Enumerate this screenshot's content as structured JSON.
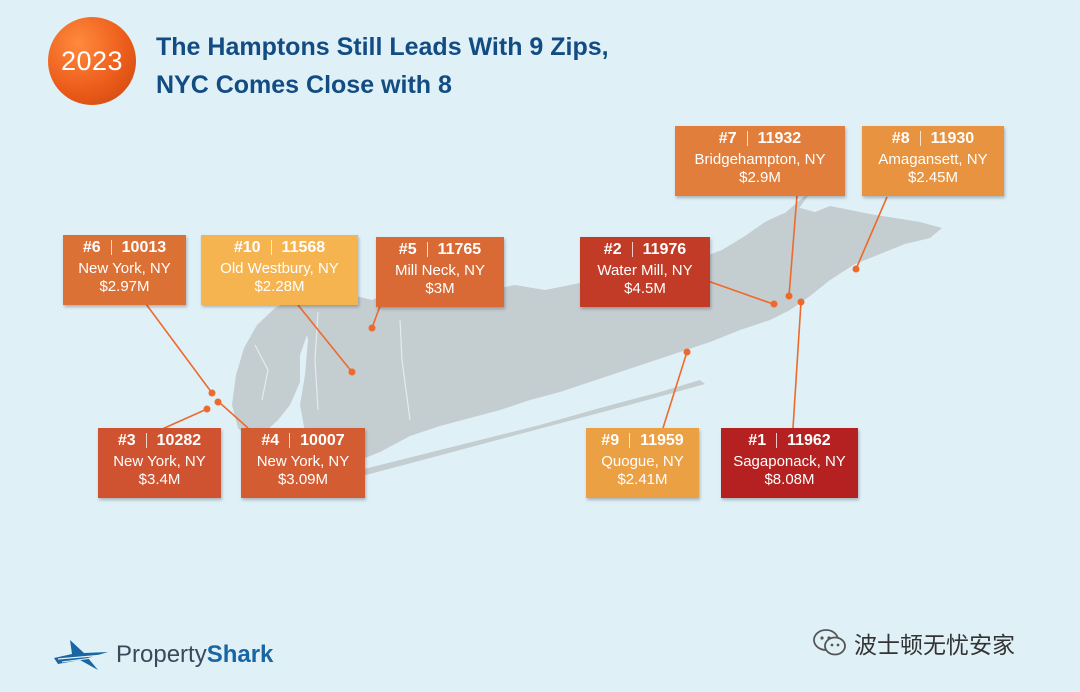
{
  "year_badge": "2023",
  "title_line1": "The Hamptons Still Leads With 9 Zips,",
  "title_line2": "NYC Comes Close with 8",
  "logo": {
    "brand_plain": "Property",
    "brand_bold": "Shark"
  },
  "watermark": "波士顿无忧安家",
  "colors": {
    "background": "#dff0f7",
    "land": "#c4cdd0",
    "pointer": "#ee6a2c",
    "title": "#124c83"
  },
  "listings": [
    {
      "rank": "#1",
      "zip": "11962",
      "city": "Sagaponack, NY",
      "price": "$8.08M",
      "color": "#b42120"
    },
    {
      "rank": "#2",
      "zip": "11976",
      "city": "Water Mill, NY",
      "price": "$4.5M",
      "color": "#c23b26"
    },
    {
      "rank": "#3",
      "zip": "10282",
      "city": "New York, NY",
      "price": "$3.4M",
      "color": "#cf5331"
    },
    {
      "rank": "#4",
      "zip": "10007",
      "city": "New York, NY",
      "price": "$3.09M",
      "color": "#d45c32"
    },
    {
      "rank": "#5",
      "zip": "11765",
      "city": "Mill Neck, NY",
      "price": "$3M",
      "color": "#d96a36"
    },
    {
      "rank": "#6",
      "zip": "10013",
      "city": "New York, NY",
      "price": "$2.97M",
      "color": "#dc7136"
    },
    {
      "rank": "#7",
      "zip": "11932",
      "city": "Bridgehampton, NY",
      "price": "$2.9M",
      "color": "#e17e3b"
    },
    {
      "rank": "#8",
      "zip": "11930",
      "city": "Amagansett, NY",
      "price": "$2.45M",
      "color": "#e8933f"
    },
    {
      "rank": "#9",
      "zip": "11959",
      "city": "Quogue, NY",
      "price": "$2.41M",
      "color": "#eba044"
    },
    {
      "rank": "#10",
      "zip": "11568",
      "city": "Old Westbury, NY",
      "price": "$2.28M",
      "color": "#f6b451"
    }
  ]
}
